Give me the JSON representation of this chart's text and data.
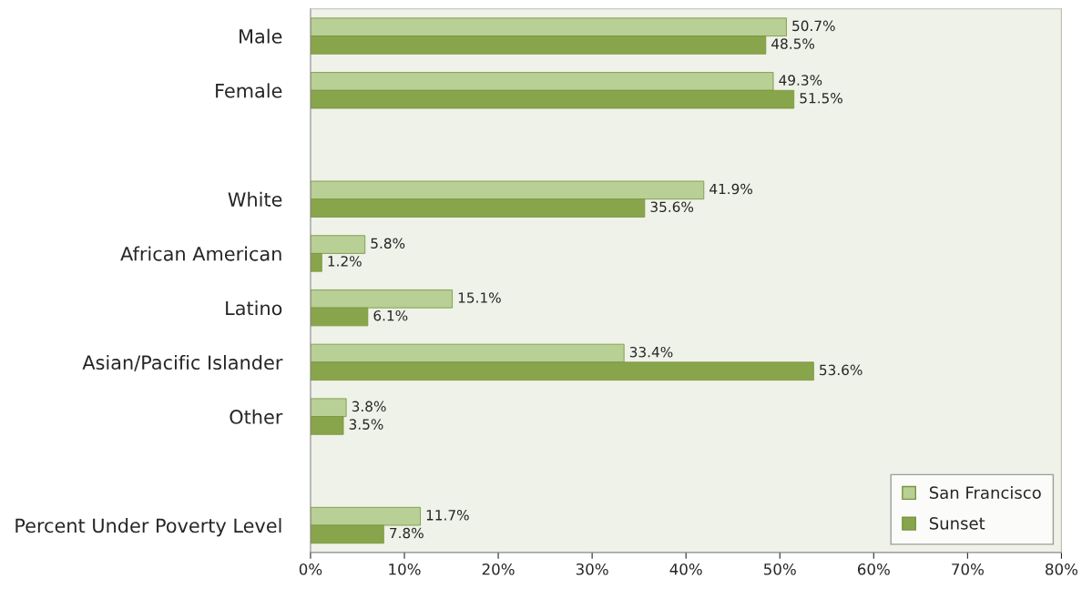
{
  "chart_data": {
    "type": "bar",
    "orientation": "horizontal",
    "categories": [
      "Male",
      "Female",
      null,
      "White",
      "African American",
      "Latino",
      "Asian/Pacific Islander",
      "Other",
      null,
      "Percent Under Poverty Level"
    ],
    "series": [
      {
        "name": "San Francisco",
        "color": "#b8cf96",
        "values": [
          50.7,
          49.3,
          null,
          41.9,
          5.8,
          15.1,
          33.4,
          3.8,
          null,
          11.7
        ],
        "value_labels": [
          "50.7%",
          "49.3%",
          null,
          "41.9%",
          "5.8%",
          "15.1%",
          "33.4%",
          "3.8%",
          null,
          "11.7%"
        ]
      },
      {
        "name": "Sunset",
        "color": "#88a54b",
        "values": [
          48.5,
          51.5,
          null,
          35.6,
          1.2,
          6.1,
          53.6,
          3.5,
          null,
          7.8
        ],
        "value_labels": [
          "48.5%",
          "51.5%",
          null,
          "35.6%",
          "1.2%",
          "6.1%",
          "53.6%",
          "3.5%",
          null,
          "7.8%"
        ]
      }
    ],
    "xlim": [
      0,
      80
    ],
    "xticks": [
      {
        "value": 0,
        "label": "0%"
      },
      {
        "value": 10,
        "label": "10%"
      },
      {
        "value": 20,
        "label": "20%"
      },
      {
        "value": 30,
        "label": "30%"
      },
      {
        "value": 40,
        "label": "40%"
      },
      {
        "value": 50,
        "label": "50%"
      },
      {
        "value": 60,
        "label": "60%"
      },
      {
        "value": 70,
        "label": "70%"
      },
      {
        "value": 80,
        "label": "80%"
      }
    ],
    "grid": false,
    "legend": "bottom right"
  }
}
